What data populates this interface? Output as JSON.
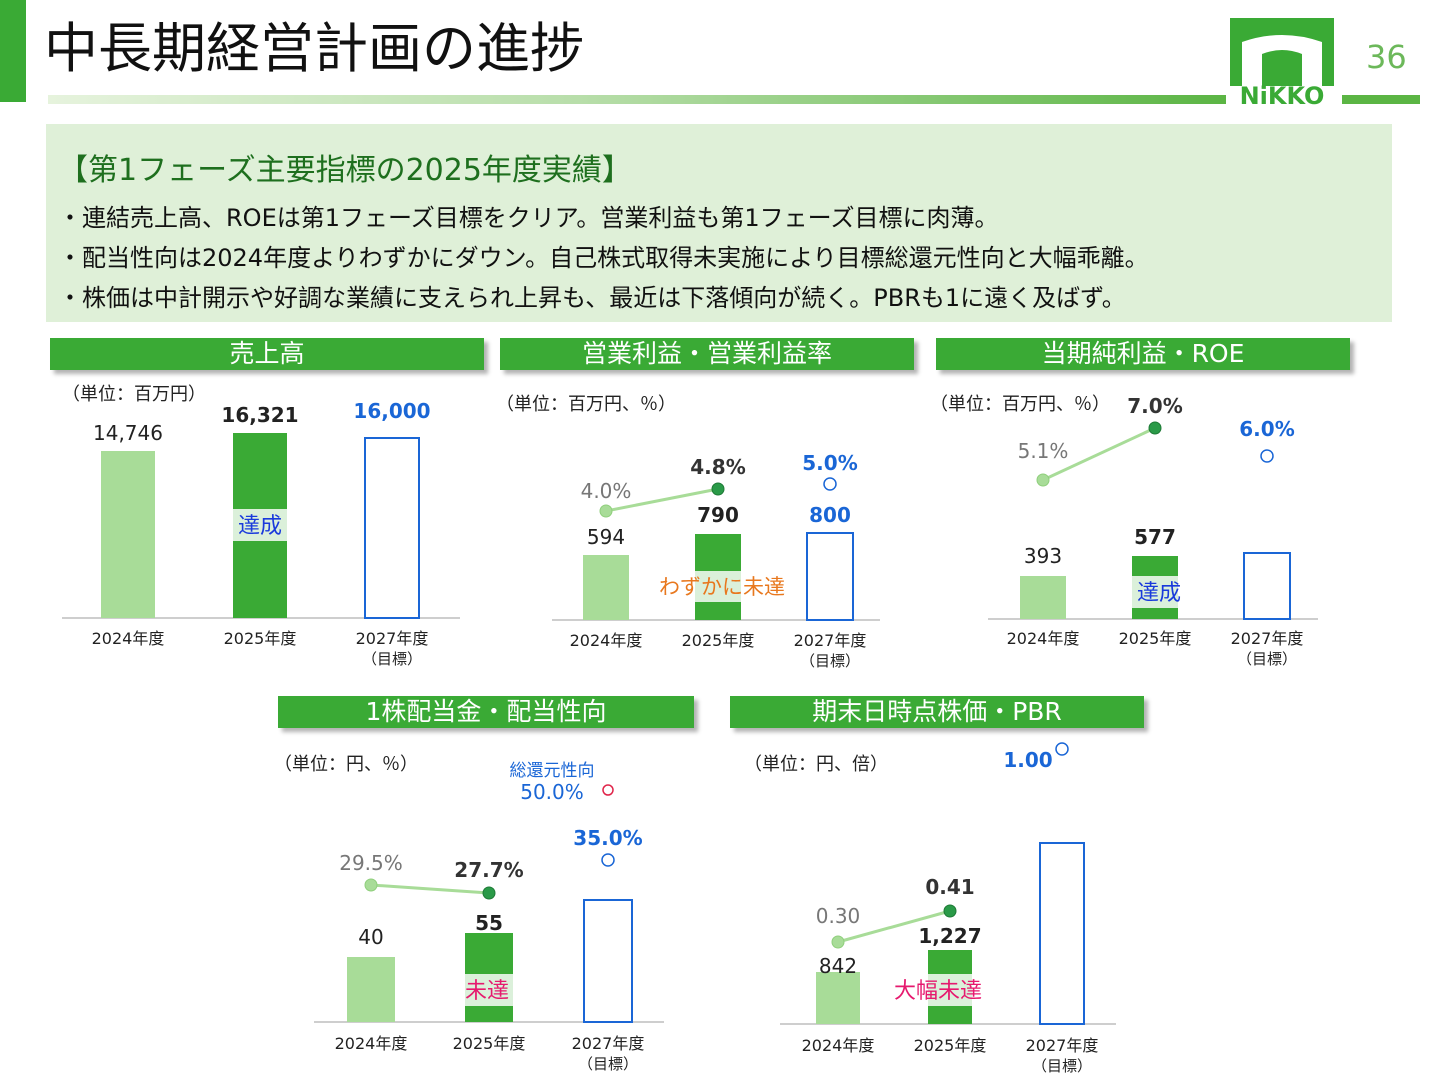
{
  "header": {
    "title": "中長期経営計画の進捗",
    "page_number": "36",
    "logo_text": "NiKKO"
  },
  "summary": {
    "heading": "【第1フェーズ主要指標の2025年度実績】",
    "lines": [
      "・連結売上高、ROEは第1フェーズ目標をクリア。営業利益も第1フェーズ目標に肉薄。",
      "・配当性向は2024年度よりわずかにダウン。自己株式取得未実施により目標総還元性向と大幅乖離。",
      "・株価は中計開示や好調な業績に支えられ上昇も、最近は下落傾向が続く。PBRも1に遠く及ばず。"
    ]
  },
  "colors": {
    "brand_green": "#3aaa35",
    "bar_2024": "#a8dc98",
    "bar_2025": "#3aaa35",
    "target_outline": "#1a66d6",
    "line": "#a8dc98",
    "marker_2025": "#2a9a48",
    "status_blue": "#1a3adc",
    "status_orange": "#e8781e",
    "status_red": "#e6196e",
    "total_return_marker": "#e0254a"
  },
  "chart_data": [
    {
      "id": "sales",
      "type": "bar",
      "title": "売上高",
      "unit": "（単位：百万円）",
      "categories": [
        "2024年度",
        "2025年度",
        "2027年度"
      ],
      "category_sub": [
        "",
        "",
        "（目標）"
      ],
      "bars": {
        "values": [
          14746,
          16321,
          16000
        ],
        "labels": [
          "14,746",
          "16,321",
          "16,000"
        ],
        "target_index": 2
      },
      "status": {
        "text": "達成",
        "color": "#1a3adc"
      }
    },
    {
      "id": "operating",
      "type": "bar",
      "title": "営業利益・営業利益率",
      "unit": "（単位：百万円、％）",
      "categories": [
        "2024年度",
        "2025年度",
        "2027年度"
      ],
      "category_sub": [
        "",
        "",
        "（目標）"
      ],
      "bars": {
        "values": [
          594,
          790,
          800
        ],
        "labels": [
          "594",
          "790",
          "800"
        ],
        "target_index": 2
      },
      "line": {
        "values": [
          4.0,
          4.8,
          5.0
        ],
        "labels": [
          "4.0%",
          "4.8%",
          "5.0%"
        ]
      },
      "status": {
        "text": "わずかに未達",
        "color": "#e8781e"
      }
    },
    {
      "id": "net_income",
      "type": "bar",
      "title": "当期純利益・ROE",
      "unit": "（単位：百万円、％）",
      "categories": [
        "2024年度",
        "2025年度",
        "2027年度"
      ],
      "category_sub": [
        "",
        "",
        "（目標）"
      ],
      "bars": {
        "values": [
          393,
          577,
          580
        ],
        "labels": [
          "393",
          "577",
          ""
        ],
        "target_index": 2
      },
      "line": {
        "values": [
          5.1,
          7.0,
          6.0
        ],
        "labels": [
          "5.1%",
          "7.0%",
          "6.0%"
        ]
      },
      "status": {
        "text": "達成",
        "color": "#1a3adc"
      }
    },
    {
      "id": "dividend",
      "type": "bar",
      "title": "1株配当金・配当性向",
      "unit": "（単位：円、％）",
      "categories": [
        "2024年度",
        "2025年度",
        "2027年度"
      ],
      "category_sub": [
        "",
        "",
        "（目標）"
      ],
      "bars": {
        "values": [
          40,
          55,
          75
        ],
        "labels": [
          "40",
          "55",
          ""
        ],
        "target_index": 2
      },
      "line": {
        "values": [
          29.5,
          27.7,
          35.0
        ],
        "labels": [
          "29.5%",
          "27.7%",
          "35.0%"
        ]
      },
      "extra_point": {
        "label": "総還元性向",
        "value": 50.0,
        "value_label": "50.0%"
      },
      "status": {
        "text": "未達",
        "color": "#e6196e"
      }
    },
    {
      "id": "stock_price",
      "type": "bar",
      "title": "期末日時点株価・PBR",
      "unit": "（単位：円、倍）",
      "categories": [
        "2024年度",
        "2025年度",
        "2027年度"
      ],
      "category_sub": [
        "",
        "",
        "（目標）"
      ],
      "bars": {
        "values": [
          842,
          1227,
          3000
        ],
        "labels": [
          "842",
          "1,227",
          ""
        ],
        "target_index": 2
      },
      "line": {
        "values": [
          0.3,
          0.41,
          1.0
        ],
        "labels": [
          "0.30",
          "0.41",
          "1.00"
        ]
      },
      "status": {
        "text": "大幅未達",
        "color": "#e6196e"
      }
    }
  ]
}
